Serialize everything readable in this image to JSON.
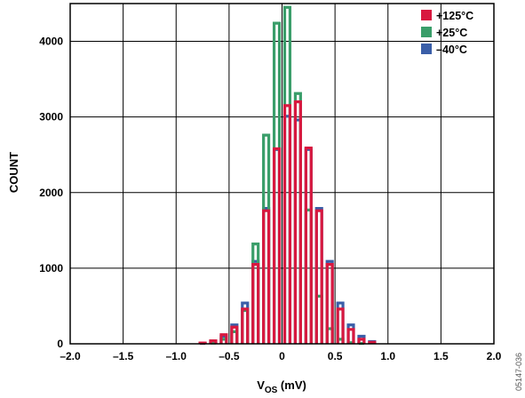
{
  "chart_data": {
    "type": "histogram",
    "xlabel_main": "V",
    "xlabel_sub": "OS",
    "xlabel_unit": " (mV)",
    "ylabel": "COUNT",
    "xlim": [
      -2.0,
      2.0
    ],
    "ylim": [
      0,
      4500
    ],
    "x_ticks": [
      -2.0,
      -1.5,
      -1.0,
      -0.5,
      0,
      0.5,
      1.0,
      1.5,
      2.0
    ],
    "x_tick_labels": [
      "–2.0",
      "–1.5",
      "–1.0",
      "–0.5",
      "0",
      "0.5",
      "1.0",
      "1.5",
      "2.0"
    ],
    "y_ticks": [
      0,
      1000,
      2000,
      3000,
      4000
    ],
    "y_tick_labels": [
      "0",
      "1000",
      "2000",
      "3000",
      "4000"
    ],
    "grid": true,
    "legend_position": "top-right",
    "bin_width": 0.1,
    "bin_centers": [
      -0.75,
      -0.65,
      -0.55,
      -0.45,
      -0.35,
      -0.25,
      -0.15,
      -0.05,
      0.05,
      0.15,
      0.25,
      0.35,
      0.45,
      0.55,
      0.65,
      0.75,
      0.85
    ],
    "series": [
      {
        "name": "–40°C",
        "color": "#3a5ea8",
        "values": [
          5,
          30,
          100,
          250,
          540,
          1090,
          1790,
          2570,
          3010,
          2960,
          2570,
          1790,
          1090,
          540,
          250,
          100,
          30
        ]
      },
      {
        "name": "+25°C",
        "color": "#3a9e6a",
        "values": [
          0,
          10,
          60,
          160,
          440,
          1320,
          2760,
          4240,
          4450,
          3310,
          1770,
          630,
          200,
          60,
          15,
          5,
          0
        ]
      },
      {
        "name": "+125°C",
        "color": "#d8183f",
        "values": [
          10,
          40,
          120,
          220,
          460,
          1050,
          1760,
          2580,
          3150,
          3200,
          2590,
          1760,
          1050,
          460,
          190,
          60,
          20
        ]
      }
    ],
    "legend_order": [
      "+125°C",
      "+25°C",
      "–40°C"
    ]
  },
  "figure_code": "05147-036"
}
